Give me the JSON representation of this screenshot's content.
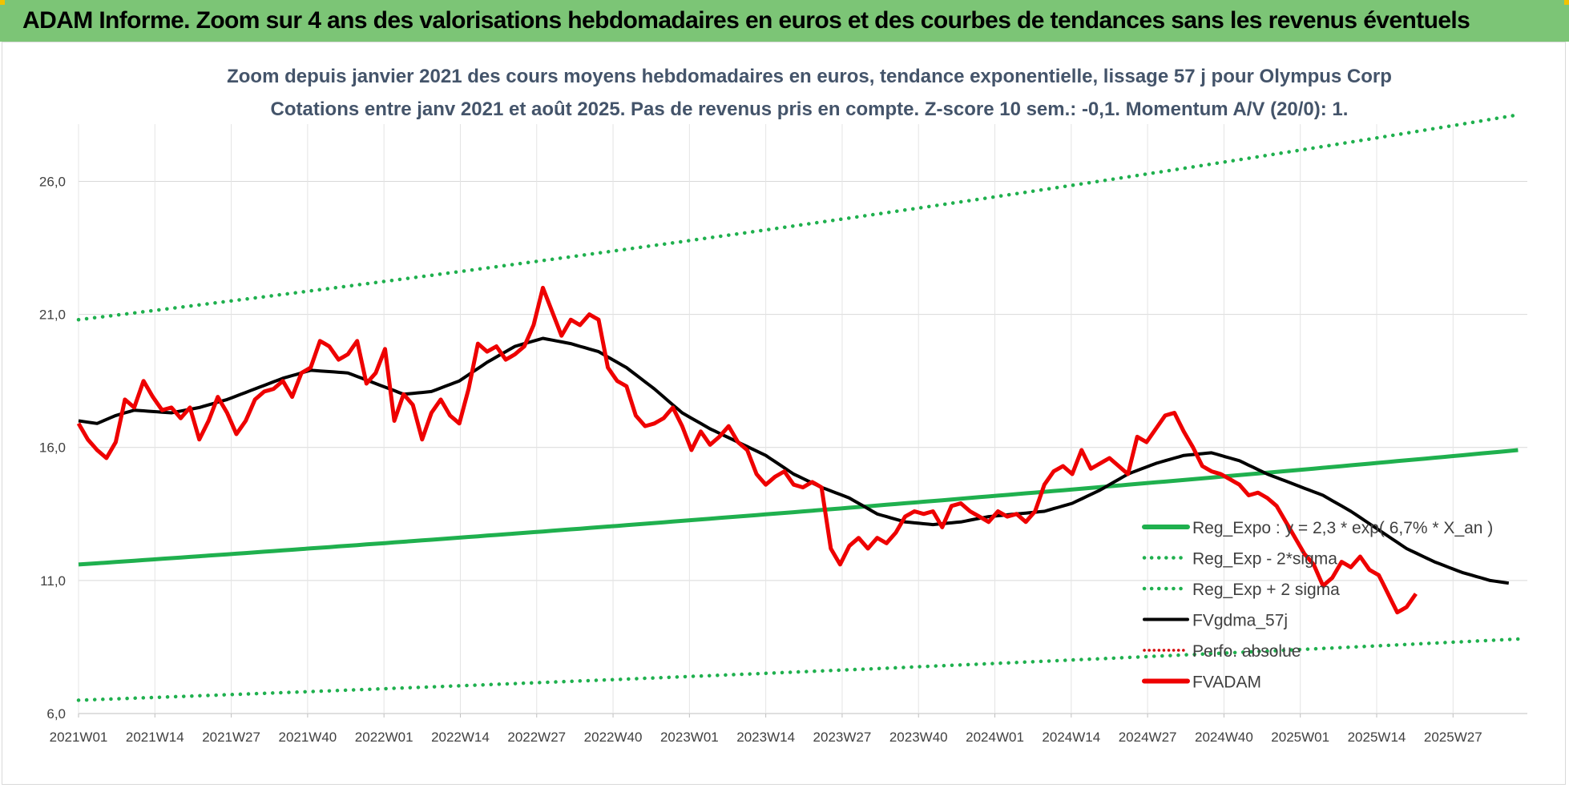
{
  "banner": {
    "title": "ADAM Informe. Zoom sur 4 ans des valorisations hebdomadaires en euros et des courbes de tendances sans les revenus éventuels"
  },
  "colors": {
    "banner": "#7cc576",
    "trend": "#1fb04e",
    "band": "#1fb04e",
    "smooth": "#000000",
    "perf": "#d40000",
    "price": "#ee0000",
    "title": "#44546a"
  },
  "chart_data": {
    "type": "line",
    "title_lines": [
      "Zoom depuis janvier 2021 des cours moyens hebdomadaires en euros, tendance exponentielle, lissage 57 j pour Olympus Corp",
      "Cotations entre janv 2021 et août 2025.  Pas de revenus pris en compte. Z-score 10 sem.: -0,1. Momentum A/V (20/0): 1."
    ],
    "ylim": [
      6,
      28
    ],
    "y_ticks": [
      "6,0",
      "11,0",
      "16,0",
      "21,0",
      "26,0"
    ],
    "y_tick_values": [
      6,
      11,
      16,
      21,
      26
    ],
    "x_tick_labels": [
      "2021W01",
      "2021W14",
      "2021W27",
      "2021W40",
      "2022W01",
      "2022W14",
      "2022W27",
      "2022W40",
      "2023W01",
      "2023W14",
      "2023W27",
      "2023W40",
      "2024W01",
      "2024W14",
      "2024W27",
      "2024W40",
      "2025W01",
      "2025W14",
      "2025W27"
    ],
    "weeks_count": 188,
    "grid": "vertical and horizontal",
    "legend_position": "bottom-right",
    "series": [
      {
        "name": "Reg_Expo : y = 2,3 * exp( 6,7% *  X_an )",
        "style": "solid",
        "color": "#1fb04e",
        "start": 11.6,
        "end": 15.9
      },
      {
        "name": "Reg_Exp - 2*sigma",
        "style": "dotted",
        "color": "#1fb04e",
        "start": 6.5,
        "end": 8.8
      },
      {
        "name": "Reg_Exp + 2 sigma",
        "style": "dotted",
        "color": "#1fb04e",
        "start": 20.8,
        "end": 28.5
      },
      {
        "name": "FVgdma_57j",
        "style": "solid",
        "color": "#000000",
        "keypoints": [
          [
            0,
            17.0
          ],
          [
            4,
            16.9
          ],
          [
            8,
            17.2
          ],
          [
            12,
            17.4
          ],
          [
            20,
            17.3
          ],
          [
            26,
            17.5
          ],
          [
            32,
            17.8
          ],
          [
            38,
            18.2
          ],
          [
            44,
            18.6
          ],
          [
            50,
            18.9
          ],
          [
            58,
            18.8
          ],
          [
            64,
            18.4
          ],
          [
            70,
            18.0
          ],
          [
            76,
            18.1
          ],
          [
            82,
            18.5
          ],
          [
            88,
            19.2
          ],
          [
            94,
            19.8
          ],
          [
            100,
            20.1
          ],
          [
            106,
            19.9
          ],
          [
            112,
            19.6
          ],
          [
            118,
            19.0
          ],
          [
            124,
            18.2
          ],
          [
            130,
            17.3
          ],
          [
            136,
            16.7
          ],
          [
            142,
            16.2
          ],
          [
            148,
            15.7
          ],
          [
            154,
            15.0
          ],
          [
            160,
            14.5
          ],
          [
            166,
            14.1
          ],
          [
            172,
            13.5
          ],
          [
            178,
            13.2
          ],
          [
            184,
            13.1
          ],
          [
            190,
            13.2
          ],
          [
            196,
            13.4
          ],
          [
            202,
            13.5
          ],
          [
            208,
            13.6
          ],
          [
            214,
            13.9
          ],
          [
            220,
            14.4
          ],
          [
            226,
            15.0
          ],
          [
            232,
            15.4
          ],
          [
            238,
            15.7
          ],
          [
            244,
            15.8
          ],
          [
            250,
            15.5
          ],
          [
            256,
            15.0
          ],
          [
            262,
            14.6
          ],
          [
            268,
            14.2
          ],
          [
            274,
            13.6
          ],
          [
            280,
            12.9
          ],
          [
            286,
            12.2
          ],
          [
            292,
            11.7
          ],
          [
            298,
            11.3
          ],
          [
            304,
            11.0
          ],
          [
            308,
            10.9
          ]
        ]
      },
      {
        "name": "Perfo. absolue",
        "style": "dotted",
        "color": "#d40000"
      },
      {
        "name": "FVADAM",
        "style": "solid",
        "color": "#ee0000",
        "keypoints": [
          [
            0,
            16.9
          ],
          [
            2,
            16.3
          ],
          [
            4,
            15.9
          ],
          [
            6,
            15.6
          ],
          [
            8,
            16.2
          ],
          [
            10,
            17.8
          ],
          [
            12,
            17.5
          ],
          [
            14,
            18.5
          ],
          [
            16,
            17.9
          ],
          [
            18,
            17.4
          ],
          [
            20,
            17.5
          ],
          [
            22,
            17.1
          ],
          [
            24,
            17.5
          ],
          [
            26,
            16.3
          ],
          [
            28,
            17.0
          ],
          [
            30,
            17.9
          ],
          [
            32,
            17.3
          ],
          [
            34,
            16.5
          ],
          [
            36,
            17.0
          ],
          [
            38,
            17.8
          ],
          [
            40,
            18.1
          ],
          [
            42,
            18.2
          ],
          [
            44,
            18.5
          ],
          [
            46,
            17.9
          ],
          [
            48,
            18.8
          ],
          [
            50,
            19.0
          ],
          [
            52,
            20.0
          ],
          [
            54,
            19.8
          ],
          [
            56,
            19.3
          ],
          [
            58,
            19.5
          ],
          [
            60,
            20.0
          ],
          [
            62,
            18.4
          ],
          [
            64,
            18.8
          ],
          [
            66,
            19.7
          ],
          [
            68,
            17.0
          ],
          [
            70,
            18.0
          ],
          [
            72,
            17.6
          ],
          [
            74,
            16.3
          ],
          [
            76,
            17.3
          ],
          [
            78,
            17.8
          ],
          [
            80,
            17.2
          ],
          [
            82,
            16.9
          ],
          [
            84,
            18.2
          ],
          [
            86,
            19.9
          ],
          [
            88,
            19.6
          ],
          [
            90,
            19.8
          ],
          [
            92,
            19.3
          ],
          [
            94,
            19.5
          ],
          [
            96,
            19.8
          ],
          [
            98,
            20.6
          ],
          [
            100,
            22.0
          ],
          [
            102,
            21.1
          ],
          [
            104,
            20.2
          ],
          [
            106,
            20.8
          ],
          [
            108,
            20.6
          ],
          [
            110,
            21.0
          ],
          [
            112,
            20.8
          ],
          [
            114,
            19.0
          ],
          [
            116,
            18.5
          ],
          [
            118,
            18.3
          ],
          [
            120,
            17.2
          ],
          [
            122,
            16.8
          ],
          [
            124,
            16.9
          ],
          [
            126,
            17.1
          ],
          [
            128,
            17.5
          ],
          [
            130,
            16.8
          ],
          [
            132,
            15.9
          ],
          [
            134,
            16.6
          ],
          [
            136,
            16.1
          ],
          [
            138,
            16.4
          ],
          [
            140,
            16.8
          ],
          [
            142,
            16.2
          ],
          [
            144,
            15.9
          ],
          [
            146,
            15.0
          ],
          [
            148,
            14.6
          ],
          [
            150,
            14.9
          ],
          [
            152,
            15.1
          ],
          [
            154,
            14.6
          ],
          [
            156,
            14.5
          ],
          [
            158,
            14.7
          ],
          [
            160,
            14.5
          ],
          [
            162,
            12.2
          ],
          [
            164,
            11.6
          ],
          [
            166,
            12.3
          ],
          [
            168,
            12.6
          ],
          [
            170,
            12.2
          ],
          [
            172,
            12.6
          ],
          [
            174,
            12.4
          ],
          [
            176,
            12.8
          ],
          [
            178,
            13.4
          ],
          [
            180,
            13.6
          ],
          [
            182,
            13.5
          ],
          [
            184,
            13.6
          ],
          [
            186,
            13.0
          ],
          [
            188,
            13.8
          ],
          [
            190,
            13.9
          ],
          [
            192,
            13.6
          ],
          [
            194,
            13.4
          ],
          [
            196,
            13.2
          ],
          [
            198,
            13.6
          ],
          [
            200,
            13.4
          ],
          [
            202,
            13.5
          ],
          [
            204,
            13.2
          ],
          [
            206,
            13.6
          ],
          [
            208,
            14.6
          ],
          [
            210,
            15.1
          ],
          [
            212,
            15.3
          ],
          [
            214,
            15.0
          ],
          [
            216,
            15.9
          ],
          [
            218,
            15.2
          ],
          [
            220,
            15.4
          ],
          [
            222,
            15.6
          ],
          [
            224,
            15.3
          ],
          [
            226,
            15.0
          ],
          [
            228,
            16.4
          ],
          [
            230,
            16.2
          ],
          [
            232,
            16.7
          ],
          [
            234,
            17.2
          ],
          [
            236,
            17.3
          ],
          [
            238,
            16.6
          ],
          [
            240,
            16.0
          ],
          [
            242,
            15.3
          ],
          [
            244,
            15.1
          ],
          [
            246,
            15.0
          ],
          [
            248,
            14.8
          ],
          [
            250,
            14.6
          ],
          [
            252,
            14.2
          ],
          [
            254,
            14.3
          ],
          [
            256,
            14.1
          ],
          [
            258,
            13.8
          ],
          [
            260,
            13.2
          ],
          [
            262,
            12.6
          ],
          [
            264,
            12.0
          ],
          [
            266,
            11.6
          ],
          [
            268,
            10.8
          ],
          [
            270,
            11.1
          ],
          [
            272,
            11.7
          ],
          [
            274,
            11.5
          ],
          [
            276,
            11.9
          ],
          [
            278,
            11.4
          ],
          [
            280,
            11.2
          ],
          [
            282,
            10.5
          ],
          [
            284,
            9.8
          ],
          [
            286,
            10.0
          ],
          [
            288,
            10.5
          ]
        ]
      }
    ]
  }
}
